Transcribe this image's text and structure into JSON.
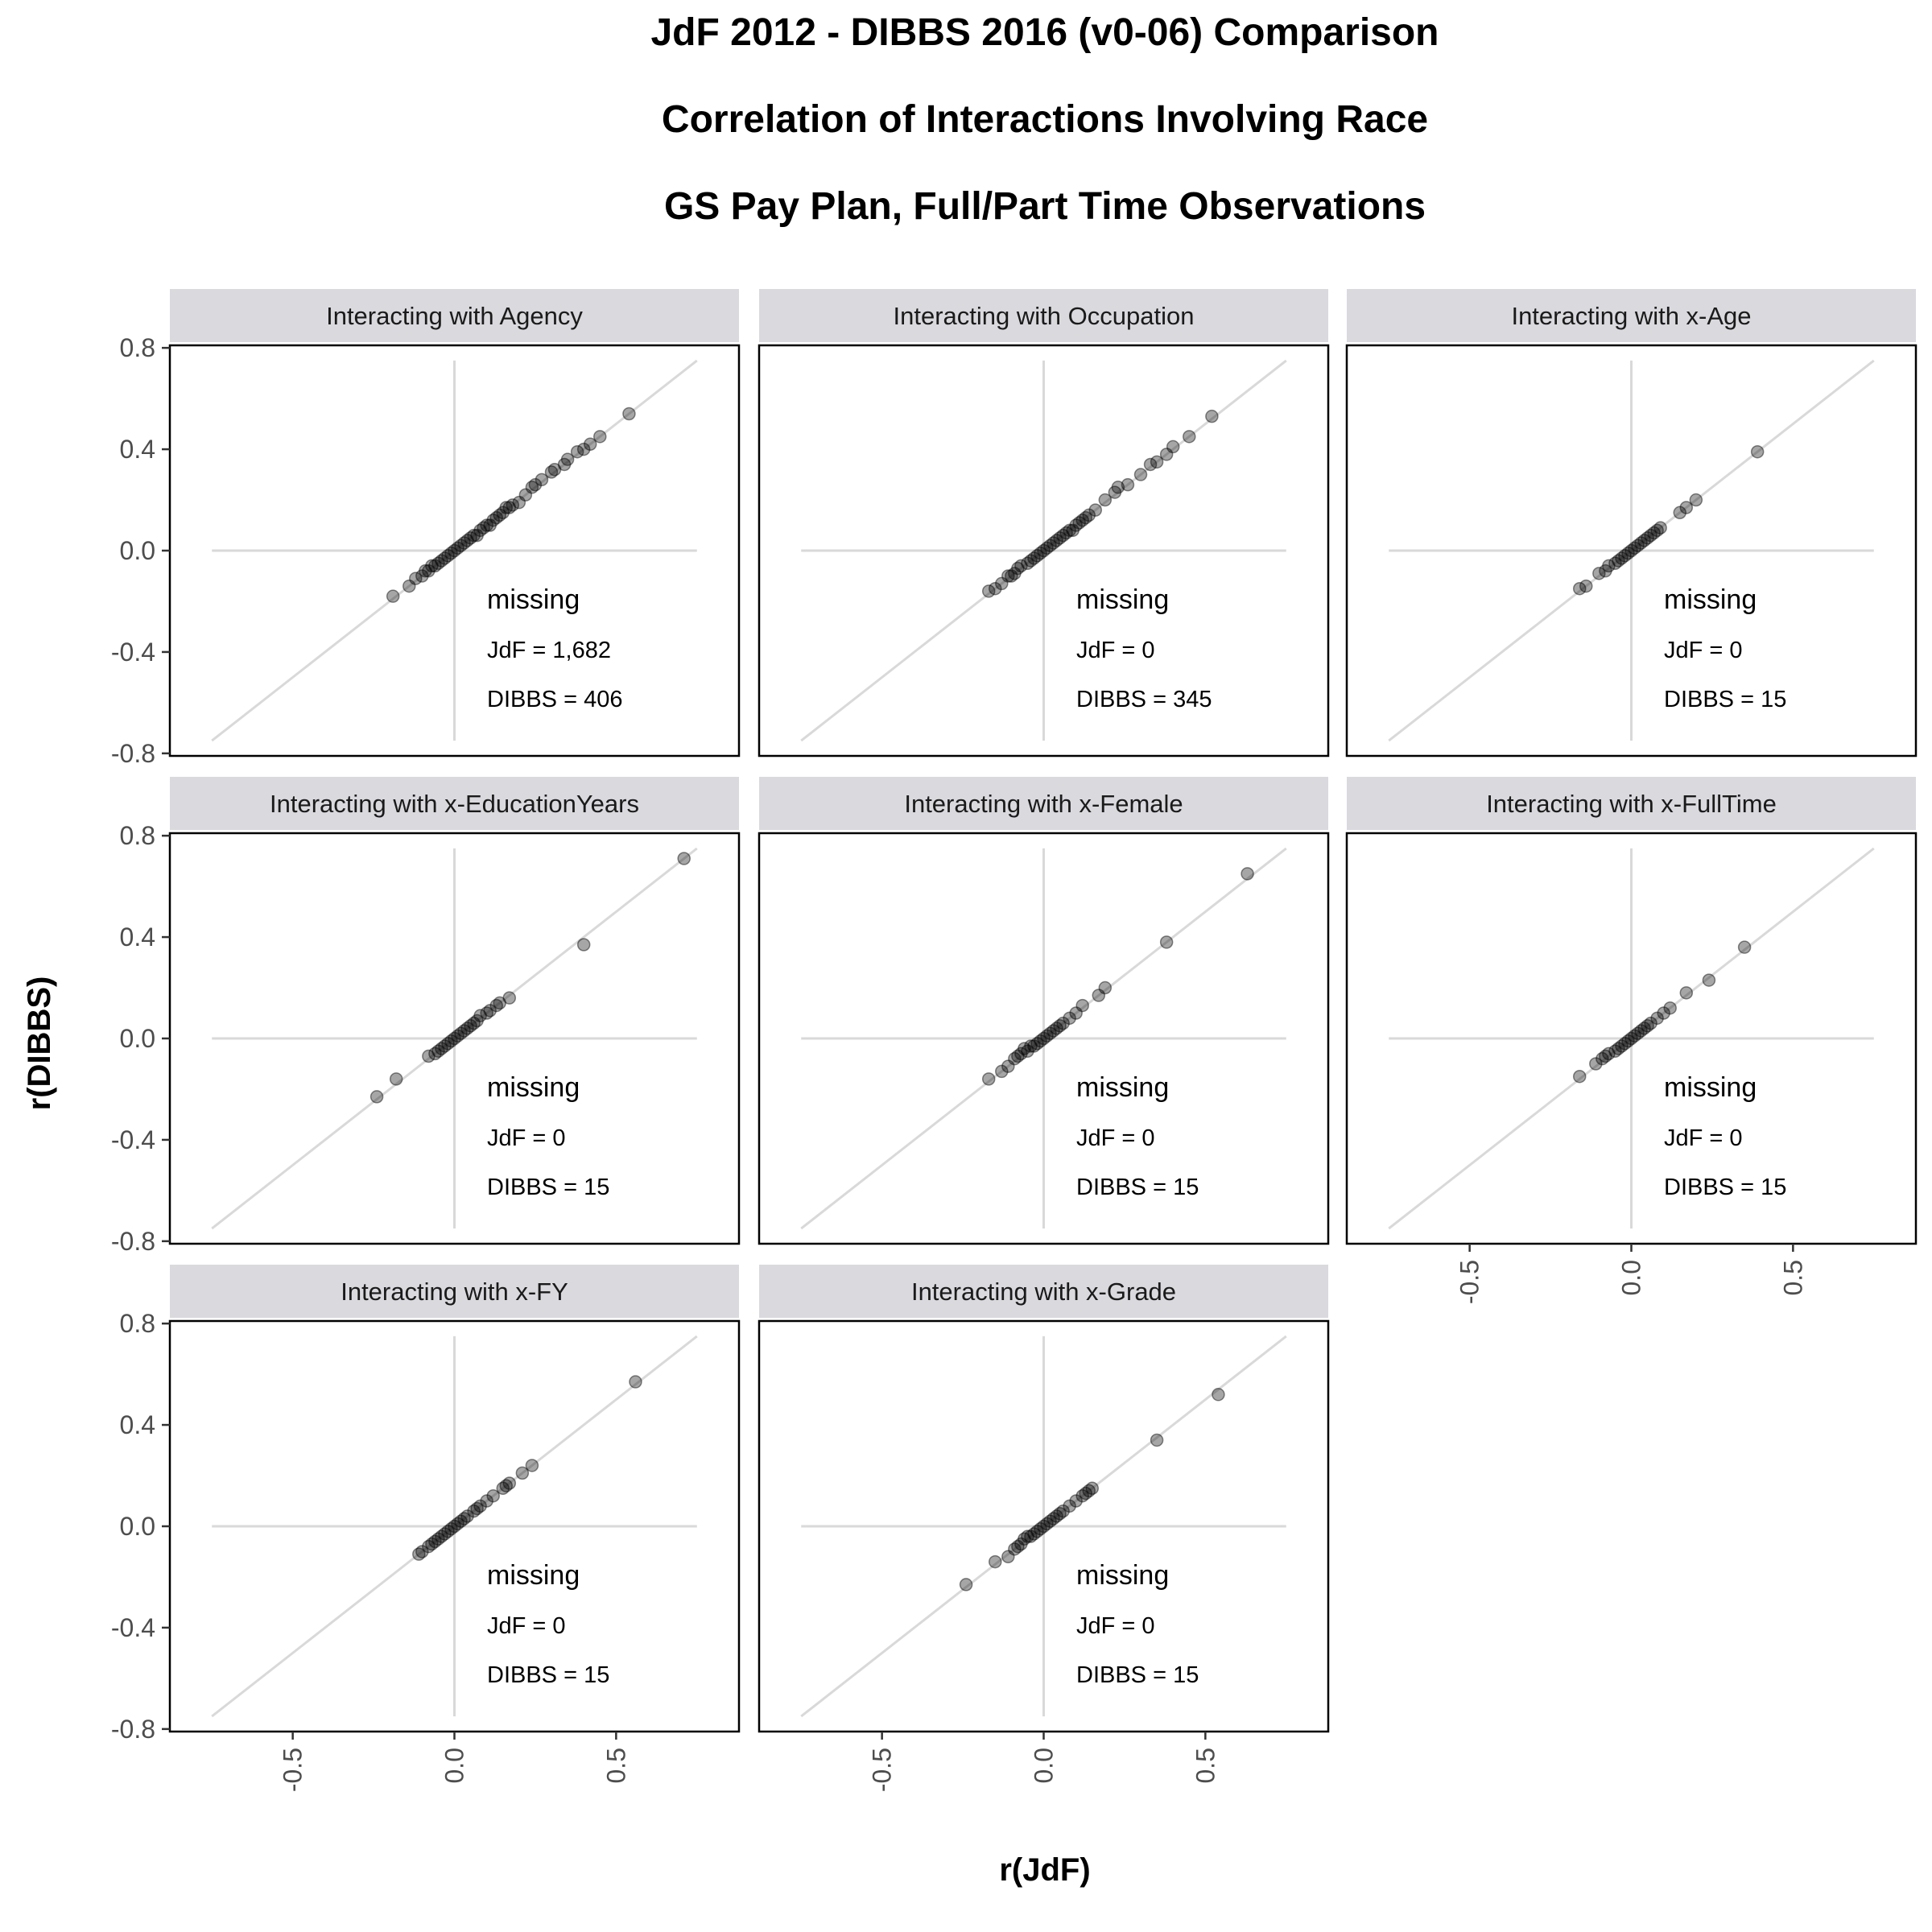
{
  "titles": [
    "JdF 2012 - DIBBS 2016 (v0-06) Comparison",
    "Correlation of Interactions Involving Race",
    "GS Pay Plan, Full/Part Time Observations"
  ],
  "colors": {
    "point": "#000000",
    "reference_line": "#d9d9d9",
    "strip_background": "#d9d9de",
    "panel_border": "#000000"
  },
  "chart_data": {
    "type": "scatter",
    "xlabel": "r(JdF)",
    "ylabel": "r(DIBBS)",
    "xlim": [
      -0.88,
      0.88
    ],
    "ylim": [
      -0.81,
      0.81
    ],
    "x_ticks": [
      "-0.5",
      "0.0",
      "0.5"
    ],
    "y_ticks": [
      "0.8",
      "0.4",
      "0.0",
      "-0.4",
      "-0.8"
    ],
    "reference_lines": [
      "x = 0",
      "y = 0",
      "y = x"
    ],
    "grid": false,
    "layout": "facet grid, 3 columns",
    "panels": [
      {
        "label": "Interacting with Agency",
        "missing_label": "missing",
        "jdf_missing": "JdF = 1,682",
        "dibbs_missing": "DIBBS = 406",
        "points": [
          [
            -0.19,
            -0.18
          ],
          [
            -0.14,
            -0.14
          ],
          [
            -0.12,
            -0.11
          ],
          [
            -0.1,
            -0.1
          ],
          [
            -0.09,
            -0.08
          ],
          [
            -0.08,
            -0.08
          ],
          [
            -0.07,
            -0.06
          ],
          [
            -0.06,
            -0.06
          ],
          [
            -0.05,
            -0.05
          ],
          [
            -0.04,
            -0.04
          ],
          [
            -0.03,
            -0.03
          ],
          [
            -0.02,
            -0.02
          ],
          [
            -0.01,
            -0.01
          ],
          [
            0.0,
            0.0
          ],
          [
            0.01,
            0.01
          ],
          [
            0.02,
            0.02
          ],
          [
            0.03,
            0.03
          ],
          [
            0.04,
            0.04
          ],
          [
            0.05,
            0.05
          ],
          [
            0.06,
            0.06
          ],
          [
            0.07,
            0.06
          ],
          [
            0.08,
            0.08
          ],
          [
            0.09,
            0.09
          ],
          [
            0.1,
            0.1
          ],
          [
            0.11,
            0.1
          ],
          [
            0.12,
            0.12
          ],
          [
            0.13,
            0.13
          ],
          [
            0.14,
            0.14
          ],
          [
            0.15,
            0.15
          ],
          [
            0.16,
            0.17
          ],
          [
            0.17,
            0.17
          ],
          [
            0.18,
            0.18
          ],
          [
            0.2,
            0.19
          ],
          [
            0.22,
            0.22
          ],
          [
            0.24,
            0.25
          ],
          [
            0.25,
            0.26
          ],
          [
            0.27,
            0.28
          ],
          [
            0.3,
            0.31
          ],
          [
            0.31,
            0.32
          ],
          [
            0.34,
            0.34
          ],
          [
            0.35,
            0.36
          ],
          [
            0.38,
            0.39
          ],
          [
            0.4,
            0.4
          ],
          [
            0.42,
            0.42
          ],
          [
            0.45,
            0.45
          ],
          [
            0.54,
            0.54
          ]
        ]
      },
      {
        "label": "Interacting with Occupation",
        "missing_label": "missing",
        "jdf_missing": "JdF = 0",
        "dibbs_missing": "DIBBS = 345",
        "points": [
          [
            -0.17,
            -0.16
          ],
          [
            -0.15,
            -0.15
          ],
          [
            -0.13,
            -0.13
          ],
          [
            -0.11,
            -0.1
          ],
          [
            -0.1,
            -0.1
          ],
          [
            -0.09,
            -0.09
          ],
          [
            -0.08,
            -0.07
          ],
          [
            -0.07,
            -0.06
          ],
          [
            -0.05,
            -0.05
          ],
          [
            -0.04,
            -0.04
          ],
          [
            -0.03,
            -0.03
          ],
          [
            -0.02,
            -0.02
          ],
          [
            -0.01,
            -0.01
          ],
          [
            0.0,
            0.0
          ],
          [
            0.01,
            0.01
          ],
          [
            0.02,
            0.02
          ],
          [
            0.03,
            0.03
          ],
          [
            0.04,
            0.04
          ],
          [
            0.05,
            0.05
          ],
          [
            0.06,
            0.06
          ],
          [
            0.07,
            0.07
          ],
          [
            0.08,
            0.08
          ],
          [
            0.09,
            0.08
          ],
          [
            0.1,
            0.1
          ],
          [
            0.11,
            0.11
          ],
          [
            0.12,
            0.12
          ],
          [
            0.13,
            0.13
          ],
          [
            0.14,
            0.14
          ],
          [
            0.16,
            0.16
          ],
          [
            0.19,
            0.2
          ],
          [
            0.22,
            0.23
          ],
          [
            0.23,
            0.25
          ],
          [
            0.26,
            0.26
          ],
          [
            0.3,
            0.3
          ],
          [
            0.33,
            0.34
          ],
          [
            0.35,
            0.35
          ],
          [
            0.38,
            0.38
          ],
          [
            0.4,
            0.41
          ],
          [
            0.45,
            0.45
          ],
          [
            0.52,
            0.53
          ]
        ]
      },
      {
        "label": "Interacting with x-Age",
        "missing_label": "missing",
        "jdf_missing": "JdF = 0",
        "dibbs_missing": "DIBBS = 15",
        "points": [
          [
            -0.16,
            -0.15
          ],
          [
            -0.14,
            -0.14
          ],
          [
            -0.1,
            -0.09
          ],
          [
            -0.08,
            -0.08
          ],
          [
            -0.07,
            -0.06
          ],
          [
            -0.05,
            -0.05
          ],
          [
            -0.04,
            -0.04
          ],
          [
            -0.03,
            -0.03
          ],
          [
            -0.02,
            -0.02
          ],
          [
            -0.01,
            -0.01
          ],
          [
            0.0,
            0.0
          ],
          [
            0.01,
            0.01
          ],
          [
            0.02,
            0.02
          ],
          [
            0.03,
            0.03
          ],
          [
            0.04,
            0.04
          ],
          [
            0.05,
            0.05
          ],
          [
            0.06,
            0.06
          ],
          [
            0.07,
            0.07
          ],
          [
            0.08,
            0.08
          ],
          [
            0.09,
            0.09
          ],
          [
            0.15,
            0.15
          ],
          [
            0.17,
            0.17
          ],
          [
            0.2,
            0.2
          ],
          [
            0.39,
            0.39
          ]
        ]
      },
      {
        "label": "Interacting with x-EducationYears",
        "missing_label": "missing",
        "jdf_missing": "JdF = 0",
        "dibbs_missing": "DIBBS = 15",
        "points": [
          [
            -0.24,
            -0.23
          ],
          [
            -0.18,
            -0.16
          ],
          [
            -0.08,
            -0.07
          ],
          [
            -0.06,
            -0.06
          ],
          [
            -0.05,
            -0.05
          ],
          [
            -0.04,
            -0.04
          ],
          [
            -0.03,
            -0.03
          ],
          [
            -0.02,
            -0.02
          ],
          [
            -0.01,
            -0.01
          ],
          [
            0.0,
            0.0
          ],
          [
            0.01,
            0.01
          ],
          [
            0.02,
            0.02
          ],
          [
            0.03,
            0.03
          ],
          [
            0.04,
            0.04
          ],
          [
            0.05,
            0.05
          ],
          [
            0.06,
            0.06
          ],
          [
            0.07,
            0.07
          ],
          [
            0.08,
            0.09
          ],
          [
            0.1,
            0.1
          ],
          [
            0.11,
            0.11
          ],
          [
            0.13,
            0.13
          ],
          [
            0.14,
            0.14
          ],
          [
            0.17,
            0.16
          ],
          [
            0.4,
            0.37
          ],
          [
            0.71,
            0.71
          ]
        ]
      },
      {
        "label": "Interacting with x-Female",
        "missing_label": "missing",
        "jdf_missing": "JdF = 0",
        "dibbs_missing": "DIBBS = 15",
        "points": [
          [
            -0.17,
            -0.16
          ],
          [
            -0.13,
            -0.13
          ],
          [
            -0.11,
            -0.11
          ],
          [
            -0.09,
            -0.08
          ],
          [
            -0.08,
            -0.07
          ],
          [
            -0.07,
            -0.06
          ],
          [
            -0.06,
            -0.04
          ],
          [
            -0.05,
            -0.05
          ],
          [
            -0.04,
            -0.03
          ],
          [
            -0.03,
            -0.03
          ],
          [
            -0.02,
            -0.02
          ],
          [
            -0.01,
            -0.01
          ],
          [
            0.0,
            0.0
          ],
          [
            0.01,
            0.01
          ],
          [
            0.02,
            0.02
          ],
          [
            0.03,
            0.03
          ],
          [
            0.04,
            0.04
          ],
          [
            0.05,
            0.05
          ],
          [
            0.06,
            0.06
          ],
          [
            0.08,
            0.08
          ],
          [
            0.1,
            0.1
          ],
          [
            0.12,
            0.13
          ],
          [
            0.17,
            0.17
          ],
          [
            0.19,
            0.2
          ],
          [
            0.38,
            0.38
          ],
          [
            0.63,
            0.65
          ]
        ]
      },
      {
        "label": "Interacting with x-FullTime",
        "missing_label": "missing",
        "jdf_missing": "JdF = 0",
        "dibbs_missing": "DIBBS = 15",
        "points": [
          [
            -0.16,
            -0.15
          ],
          [
            -0.11,
            -0.1
          ],
          [
            -0.09,
            -0.08
          ],
          [
            -0.08,
            -0.07
          ],
          [
            -0.07,
            -0.06
          ],
          [
            -0.05,
            -0.05
          ],
          [
            -0.04,
            -0.04
          ],
          [
            -0.03,
            -0.03
          ],
          [
            -0.02,
            -0.02
          ],
          [
            -0.01,
            -0.01
          ],
          [
            0.0,
            0.0
          ],
          [
            0.01,
            0.01
          ],
          [
            0.02,
            0.02
          ],
          [
            0.03,
            0.03
          ],
          [
            0.04,
            0.04
          ],
          [
            0.05,
            0.05
          ],
          [
            0.06,
            0.06
          ],
          [
            0.08,
            0.08
          ],
          [
            0.1,
            0.1
          ],
          [
            0.12,
            0.12
          ],
          [
            0.17,
            0.18
          ],
          [
            0.24,
            0.23
          ],
          [
            0.35,
            0.36
          ]
        ]
      },
      {
        "label": "Interacting with x-FY",
        "missing_label": "missing",
        "jdf_missing": "JdF = 0",
        "dibbs_missing": "DIBBS = 15",
        "points": [
          [
            -0.11,
            -0.11
          ],
          [
            -0.1,
            -0.1
          ],
          [
            -0.08,
            -0.08
          ],
          [
            -0.07,
            -0.07
          ],
          [
            -0.06,
            -0.06
          ],
          [
            -0.05,
            -0.05
          ],
          [
            -0.04,
            -0.04
          ],
          [
            -0.03,
            -0.03
          ],
          [
            -0.02,
            -0.02
          ],
          [
            -0.01,
            -0.01
          ],
          [
            0.0,
            0.0
          ],
          [
            0.01,
            0.01
          ],
          [
            0.02,
            0.02
          ],
          [
            0.03,
            0.03
          ],
          [
            0.04,
            0.04
          ],
          [
            0.06,
            0.06
          ],
          [
            0.07,
            0.07
          ],
          [
            0.08,
            0.08
          ],
          [
            0.1,
            0.1
          ],
          [
            0.12,
            0.12
          ],
          [
            0.15,
            0.15
          ],
          [
            0.16,
            0.16
          ],
          [
            0.17,
            0.17
          ],
          [
            0.21,
            0.21
          ],
          [
            0.24,
            0.24
          ],
          [
            0.56,
            0.57
          ]
        ]
      },
      {
        "label": "Interacting with x-Grade",
        "missing_label": "missing",
        "jdf_missing": "JdF = 0",
        "dibbs_missing": "DIBBS = 15",
        "points": [
          [
            -0.24,
            -0.23
          ],
          [
            -0.15,
            -0.14
          ],
          [
            -0.11,
            -0.12
          ],
          [
            -0.09,
            -0.09
          ],
          [
            -0.08,
            -0.08
          ],
          [
            -0.07,
            -0.07
          ],
          [
            -0.06,
            -0.05
          ],
          [
            -0.05,
            -0.04
          ],
          [
            -0.04,
            -0.04
          ],
          [
            -0.03,
            -0.03
          ],
          [
            -0.02,
            -0.02
          ],
          [
            -0.01,
            -0.01
          ],
          [
            0.0,
            0.0
          ],
          [
            0.01,
            0.01
          ],
          [
            0.02,
            0.02
          ],
          [
            0.03,
            0.03
          ],
          [
            0.04,
            0.04
          ],
          [
            0.05,
            0.05
          ],
          [
            0.06,
            0.06
          ],
          [
            0.08,
            0.08
          ],
          [
            0.1,
            0.1
          ],
          [
            0.12,
            0.12
          ],
          [
            0.13,
            0.13
          ],
          [
            0.14,
            0.14
          ],
          [
            0.15,
            0.15
          ],
          [
            0.35,
            0.34
          ],
          [
            0.54,
            0.52
          ]
        ]
      }
    ]
  }
}
